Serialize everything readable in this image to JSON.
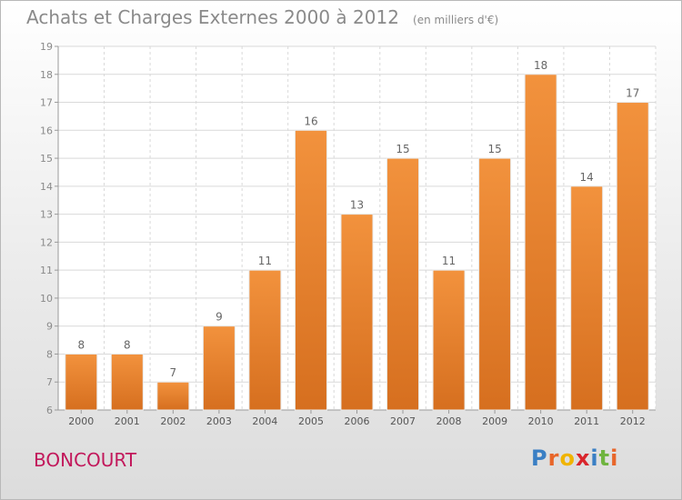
{
  "header": {
    "title": "Achats et Charges Externes 2000 à 2012",
    "unit": "(en milliers d'€)"
  },
  "commune": "BONCOURT",
  "logo": {
    "text": "Proxiti",
    "letters": [
      "P",
      "r",
      "o",
      "x",
      "i",
      "t",
      "i"
    ],
    "colors": [
      "#3a7fc4",
      "#e8662a",
      "#f0b400",
      "#d9252c",
      "#3a7fc4",
      "#6fb43f",
      "#e8662a"
    ]
  },
  "colors": {
    "bar": "#f2923d",
    "bar_dark": "#d66f1f",
    "grid": "#d9d9d9",
    "text": "#8a8a8a"
  },
  "chart_data": {
    "type": "bar",
    "title": "Achats et Charges Externes 2000 à 2012",
    "subtitle": "(en milliers d'€)",
    "categories": [
      "2000",
      "2001",
      "2002",
      "2003",
      "2004",
      "2005",
      "2006",
      "2007",
      "2008",
      "2009",
      "2010",
      "2011",
      "2012"
    ],
    "values": [
      8,
      8,
      7,
      9,
      11,
      16,
      13,
      15,
      11,
      15,
      18,
      14,
      17
    ],
    "ylim": [
      6,
      19
    ],
    "yticks": [
      6,
      7,
      8,
      9,
      10,
      11,
      12,
      13,
      14,
      15,
      16,
      17,
      18,
      19
    ],
    "xlabel": "",
    "ylabel": "",
    "grid": true,
    "data_labels": true
  }
}
